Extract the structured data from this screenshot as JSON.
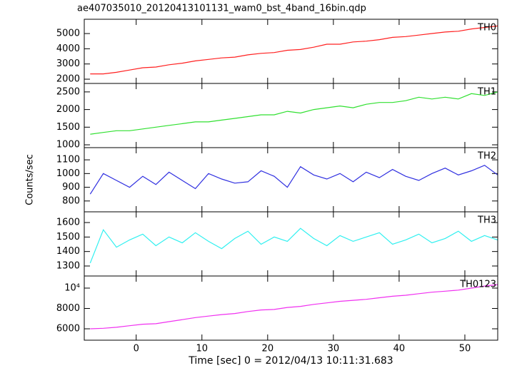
{
  "chart_data": [
    {
      "type": "line",
      "title": "ae407035010_20120413101131_wam0_bst_4band_16bin.qdp",
      "label": "TH0",
      "color": "#ff2020",
      "x": [
        -7,
        -5,
        -3,
        -1,
        1,
        3,
        5,
        7,
        9,
        11,
        13,
        15,
        17,
        19,
        21,
        23,
        25,
        27,
        29,
        31,
        33,
        35,
        37,
        39,
        41,
        43,
        45,
        47,
        49,
        51,
        53,
        55
      ],
      "values": [
        2350,
        2350,
        2450,
        2600,
        2750,
        2800,
        2950,
        3050,
        3200,
        3300,
        3400,
        3450,
        3600,
        3700,
        3750,
        3900,
        3950,
        4100,
        4300,
        4300,
        4450,
        4500,
        4600,
        4750,
        4800,
        4900,
        5000,
        5100,
        5150,
        5300,
        5400,
        5500
      ],
      "xlim": [
        -7.9,
        55
      ],
      "xticks": [
        0,
        10,
        20,
        30,
        40,
        50
      ],
      "ylim": [
        1720,
        5940
      ],
      "yticks": [
        2000,
        3000,
        4000,
        5000
      ]
    },
    {
      "type": "line",
      "label": "TH1",
      "color": "#30e030",
      "x": [
        -7,
        -5,
        -3,
        -1,
        1,
        3,
        5,
        7,
        9,
        11,
        13,
        15,
        17,
        19,
        21,
        23,
        25,
        27,
        29,
        31,
        33,
        35,
        37,
        39,
        41,
        43,
        45,
        47,
        49,
        51,
        53,
        55
      ],
      "values": [
        1300,
        1350,
        1400,
        1400,
        1450,
        1500,
        1550,
        1600,
        1650,
        1650,
        1700,
        1750,
        1800,
        1850,
        1850,
        1950,
        1900,
        2000,
        2050,
        2100,
        2050,
        2150,
        2200,
        2200,
        2250,
        2350,
        2300,
        2350,
        2300,
        2450,
        2400,
        2500
      ],
      "xlim": [
        -7.9,
        55
      ],
      "xticks": [
        0,
        10,
        20,
        30,
        40,
        50
      ],
      "ylim": [
        920,
        2740
      ],
      "yticks": [
        1000,
        1500,
        2000,
        2500
      ]
    },
    {
      "type": "line",
      "label": "TH2",
      "ylabel": "Counts/sec",
      "color": "#3030e0",
      "x": [
        -7,
        -5,
        -3,
        -1,
        1,
        3,
        5,
        7,
        9,
        11,
        13,
        15,
        17,
        19,
        21,
        23,
        25,
        27,
        29,
        31,
        33,
        35,
        37,
        39,
        41,
        43,
        45,
        47,
        49,
        51,
        53,
        55
      ],
      "values": [
        850,
        1000,
        950,
        900,
        980,
        920,
        1010,
        950,
        890,
        1000,
        960,
        930,
        940,
        1020,
        980,
        900,
        1050,
        990,
        960,
        1000,
        940,
        1010,
        970,
        1030,
        980,
        950,
        1000,
        1040,
        990,
        1020,
        1060,
        990
      ],
      "xlim": [
        -7.9,
        55
      ],
      "xticks": [
        0,
        10,
        20,
        30,
        40,
        50
      ],
      "ylim": [
        721,
        1189
      ],
      "yticks": [
        800,
        900,
        1000,
        1100
      ]
    },
    {
      "type": "line",
      "label": "TH3",
      "color": "#30f0f0",
      "x": [
        -7,
        -5,
        -3,
        -1,
        1,
        3,
        5,
        7,
        9,
        11,
        13,
        15,
        17,
        19,
        21,
        23,
        25,
        27,
        29,
        31,
        33,
        35,
        37,
        39,
        41,
        43,
        45,
        47,
        49,
        51,
        53,
        55
      ],
      "values": [
        1320,
        1550,
        1430,
        1480,
        1520,
        1440,
        1500,
        1460,
        1530,
        1470,
        1420,
        1490,
        1540,
        1450,
        1500,
        1470,
        1560,
        1490,
        1440,
        1510,
        1470,
        1500,
        1530,
        1450,
        1480,
        1520,
        1460,
        1490,
        1540,
        1470,
        1510,
        1480
      ],
      "xlim": [
        -7.9,
        55
      ],
      "xticks": [
        0,
        10,
        20,
        30,
        40,
        50
      ],
      "ylim": [
        1231,
        1674
      ],
      "yticks": [
        1300,
        1400,
        1500,
        1600
      ]
    },
    {
      "type": "line",
      "label": "TH0123",
      "xlabel": "Time [sec] 0 = 2012/04/13 10:11:31.683",
      "color": "#f030f0",
      "x": [
        -7,
        -5,
        -3,
        -1,
        1,
        3,
        5,
        7,
        9,
        11,
        13,
        15,
        17,
        19,
        21,
        23,
        25,
        27,
        29,
        31,
        33,
        35,
        37,
        39,
        41,
        43,
        45,
        47,
        49,
        51,
        53,
        55
      ],
      "values": [
        6000,
        6050,
        6150,
        6300,
        6450,
        6500,
        6700,
        6900,
        7100,
        7250,
        7400,
        7500,
        7700,
        7850,
        7900,
        8100,
        8200,
        8400,
        8550,
        8700,
        8800,
        8900,
        9050,
        9200,
        9300,
        9450,
        9600,
        9700,
        9800,
        10000,
        10200,
        10350
      ],
      "xlim": [
        -7.9,
        55
      ],
      "xticks": [
        0,
        10,
        20,
        30,
        40,
        50
      ],
      "ylim": [
        4880,
        11190
      ],
      "yticks": [
        6000,
        8000,
        {
          "value": 10000,
          "label": "10⁴"
        }
      ]
    }
  ]
}
